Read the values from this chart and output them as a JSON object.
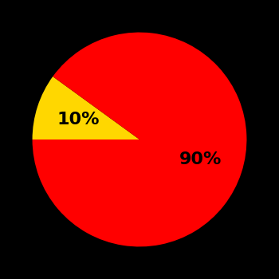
{
  "slices": [
    90,
    10
  ],
  "colors": [
    "#ff0000",
    "#ffd700"
  ],
  "labels": [
    "90%",
    "10%"
  ],
  "background_color": "#000000",
  "label_fontsize": 16,
  "label_color": "#000000",
  "startangle": 162,
  "figsize": [
    3.5,
    3.5
  ],
  "dpi": 100
}
